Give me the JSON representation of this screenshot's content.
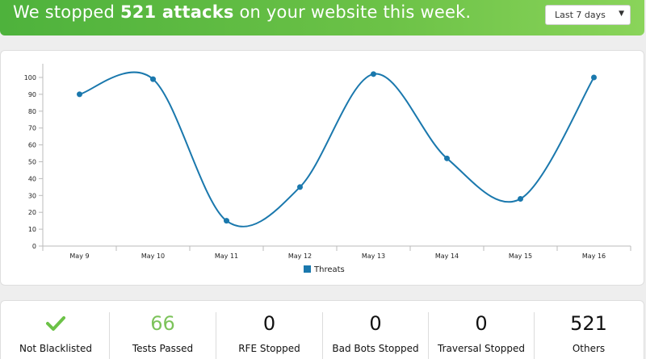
{
  "banner": {
    "prefix": "We stopped ",
    "highlight": "521 attacks",
    "suffix": " on your website this week."
  },
  "range_select": {
    "value": "Last 7 days",
    "caret_icon": "chevron-down-icon"
  },
  "chart_data": {
    "type": "line",
    "categories": [
      "May 9",
      "May 10",
      "May 11",
      "May 12",
      "May 13",
      "May 14",
      "May 15",
      "May 16"
    ],
    "series": [
      {
        "name": "Threats",
        "values": [
          90,
          99,
          15,
          35,
          102,
          52,
          28,
          100
        ],
        "color": "#1a78ad"
      }
    ],
    "yticks": [
      0,
      10,
      20,
      30,
      40,
      50,
      60,
      70,
      80,
      90,
      100
    ],
    "ylim": [
      0,
      100
    ],
    "grid": false,
    "legend_position": "bottom-center"
  },
  "stats": [
    {
      "value": "",
      "label": "Not Blacklisted",
      "icon": "check-icon",
      "color": "#6cc247"
    },
    {
      "value": "66",
      "label": "Tests Passed",
      "color": "#7cc35a"
    },
    {
      "value": "0",
      "label": "RFE Stopped"
    },
    {
      "value": "0",
      "label": "Bad Bots Stopped"
    },
    {
      "value": "0",
      "label": "Traversal Stopped"
    },
    {
      "value": "521",
      "label": "Others"
    }
  ]
}
